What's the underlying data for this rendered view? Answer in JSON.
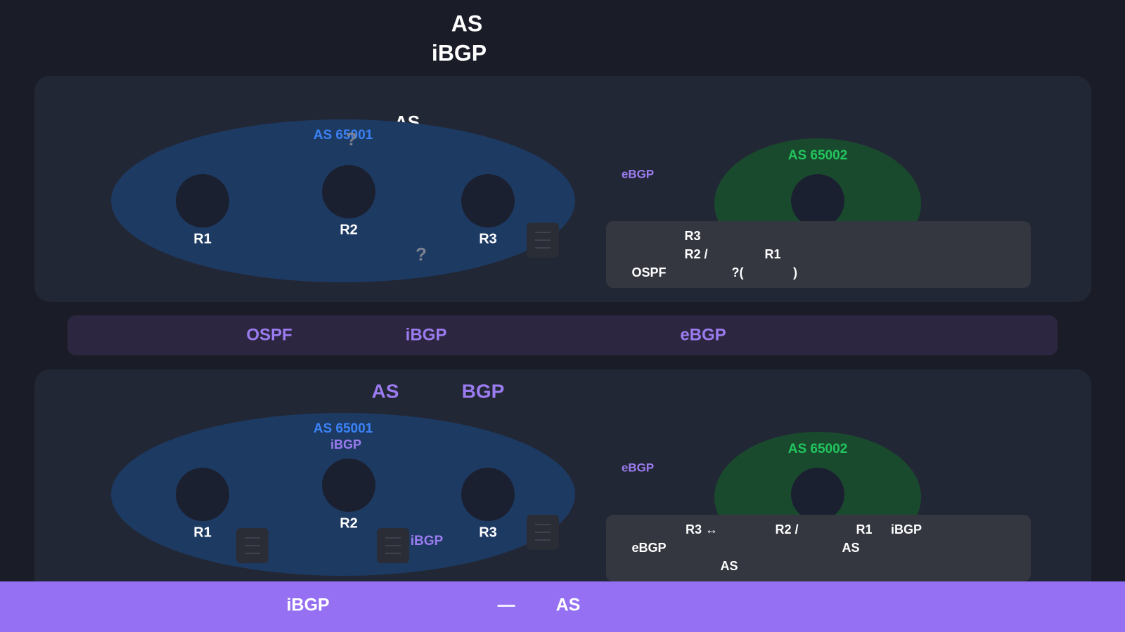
{
  "header": {
    "title_line1": "AS",
    "title_line2": "iBGP"
  },
  "panels": [
    {
      "heading": [
        "AS"
      ],
      "as_left": "AS 65001",
      "question_marks": [
        "?",
        "?"
      ],
      "routers": [
        "R1",
        "R2",
        "R3"
      ],
      "link_label": "eBGP",
      "as_right": "AS 65002",
      "note": [
        "R3",
        "R2 /",
        "R1",
        "OSPF",
        "?(",
        ")"
      ]
    },
    {
      "heading": [
        "AS",
        "BGP"
      ],
      "as_left": "AS 65001",
      "as_left_sub": "iBGP",
      "routers": [
        "R1",
        "R2",
        "R3"
      ],
      "session_label": "iBGP",
      "link_label": "eBGP",
      "as_right": "AS 65002",
      "note": [
        "R3 ↔",
        "R2 /",
        "R1",
        "iBGP",
        "eBGP",
        "AS",
        "AS"
      ]
    }
  ],
  "legend_bar": [
    "OSPF",
    "iBGP",
    "eBGP"
  ],
  "footer": [
    "iBGP",
    "—",
    "AS"
  ]
}
